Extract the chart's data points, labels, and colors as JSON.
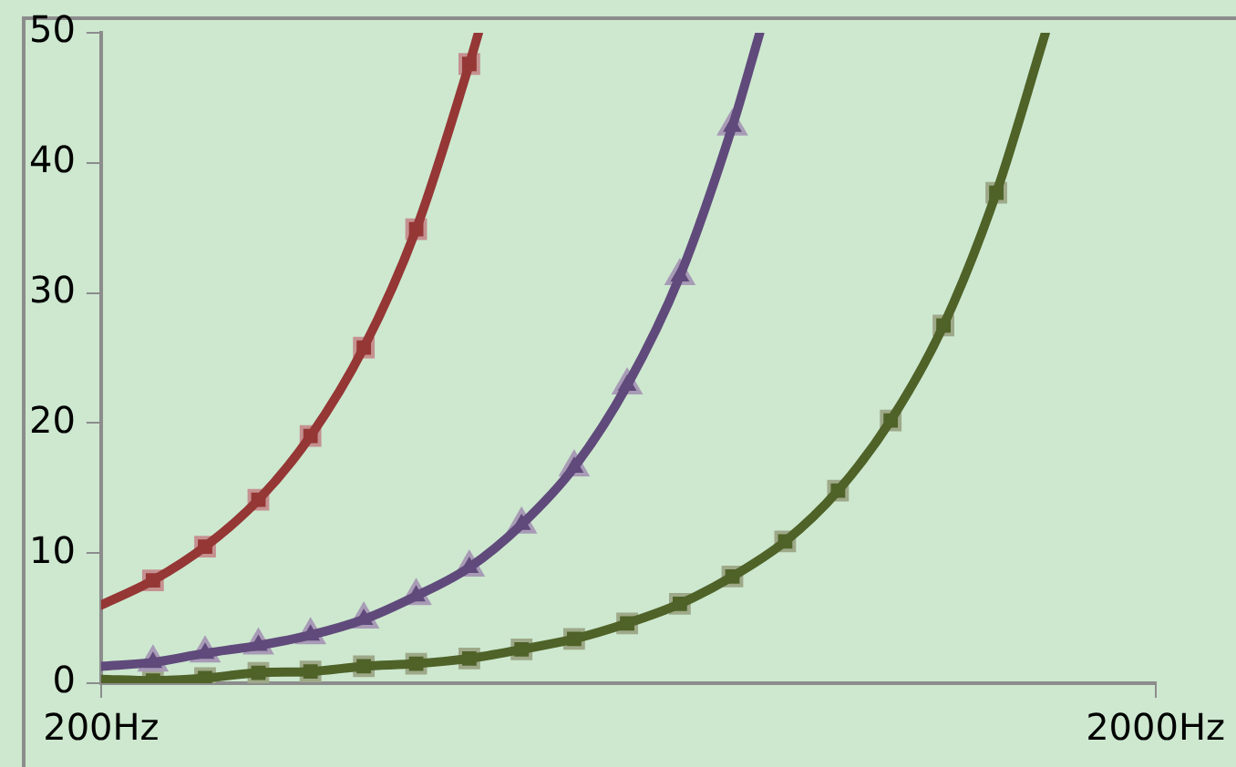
{
  "chart_data": {
    "type": "line",
    "log": "x",
    "grid": false,
    "legend": false,
    "xlim": [
      200,
      2000
    ],
    "xticks": [
      {
        "value": 200,
        "label": "200Hz"
      },
      {
        "value": 2000,
        "label": "2000Hz"
      }
    ],
    "ylim": [
      0,
      50
    ],
    "yticks": [
      0,
      10,
      20,
      30,
      40,
      50
    ],
    "series": [
      {
        "type": "line",
        "marker": "none",
        "color": "#953735",
        "x": [
          200,
          224,
          251,
          282,
          316,
          355,
          398,
          447,
          456
        ],
        "values": [
          6,
          7.9,
          10.5,
          14.1,
          19.0,
          25.8,
          34.9,
          47.6,
          50
        ]
      },
      {
        "type": "line",
        "marker": "none",
        "color": "#604a7b",
        "x": [
          200,
          224,
          251,
          282,
          316,
          355,
          398,
          447,
          501,
          562,
          631,
          708,
          794,
          843
        ],
        "values": [
          1.3,
          1.6,
          2.3,
          2.9,
          3.7,
          4.9,
          6.7,
          8.9,
          12.2,
          16.6,
          22.9,
          31.3,
          42.8,
          50
        ]
      },
      {
        "type": "line",
        "marker": "none",
        "color": "#4f6228",
        "x": [
          200,
          224,
          251,
          282,
          316,
          355,
          398,
          447,
          501,
          562,
          631,
          708,
          794,
          891,
          1000,
          1122,
          1259,
          1413,
          1573
        ],
        "values": [
          0.3,
          0.2,
          0.4,
          0.8,
          0.9,
          1.3,
          1.5,
          1.9,
          2.6,
          3.4,
          4.6,
          6.1,
          8.2,
          10.9,
          14.8,
          20.2,
          27.5,
          37.7,
          50
        ]
      },
      {
        "type": "scatter",
        "marker": "square",
        "color": "#953735",
        "x": [
          224,
          251,
          282,
          316,
          355,
          398,
          447
        ],
        "values": [
          7.9,
          10.5,
          14.1,
          19.0,
          25.8,
          34.9,
          47.6
        ]
      },
      {
        "type": "scatter",
        "marker": "triangle",
        "color": "#604a7b",
        "x": [
          224,
          251,
          282,
          316,
          355,
          398,
          447,
          501,
          562,
          631,
          708,
          794
        ],
        "values": [
          1.6,
          2.3,
          2.9,
          3.7,
          4.9,
          6.7,
          8.9,
          12.2,
          16.6,
          22.9,
          31.3,
          42.8
        ]
      },
      {
        "type": "scatter",
        "marker": "square",
        "color": "#4f6228",
        "x": [
          224,
          251,
          282,
          316,
          355,
          398,
          447,
          501,
          562,
          631,
          708,
          794,
          891,
          1000,
          1122,
          1259,
          1413
        ],
        "values": [
          0.2,
          0.4,
          0.8,
          0.9,
          1.3,
          1.5,
          1.9,
          2.6,
          3.4,
          4.6,
          6.1,
          8.2,
          10.9,
          14.8,
          20.2,
          27.5,
          37.7
        ]
      }
    ]
  }
}
